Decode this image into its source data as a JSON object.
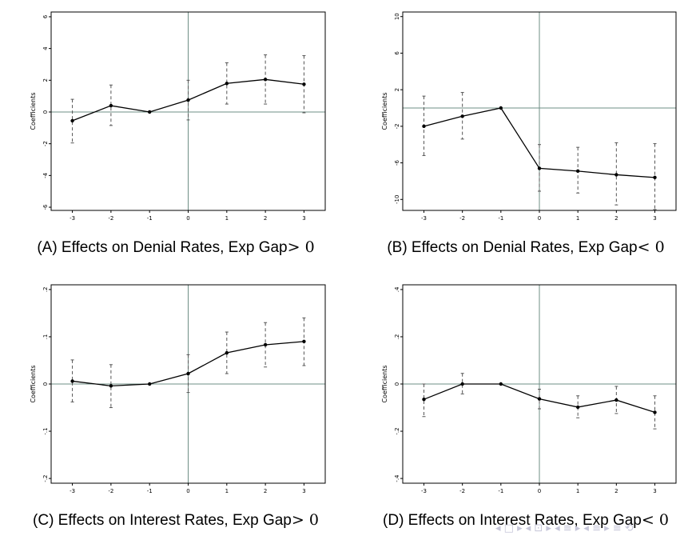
{
  "chart_data": [
    {
      "type": "line",
      "caption_text": "(A) Effects on Denial Rates, Exp Gap",
      "caption_math": "> 0",
      "ylabel": "Coefficients",
      "x": [
        -3,
        -2,
        -1,
        0,
        1,
        2,
        3
      ],
      "x_tick_labels": [
        "-3",
        "-2",
        "-1",
        "0",
        "1",
        "2",
        "3"
      ],
      "y_ticks": [
        6,
        4,
        2,
        0,
        -2,
        -4,
        -6
      ],
      "y_tick_labels": [
        "6",
        "4",
        "2",
        "0",
        "-2",
        "-4",
        "-6"
      ],
      "ylim": [
        -6.2,
        6.3
      ],
      "values": [
        -0.55,
        0.4,
        0.0,
        0.75,
        1.8,
        2.05,
        1.75
      ],
      "ci_low": [
        -1.95,
        -0.85,
        null,
        -0.5,
        0.5,
        0.5,
        -0.05
      ],
      "ci_high": [
        0.8,
        1.7,
        null,
        2.0,
        3.1,
        3.6,
        3.55
      ],
      "reference_lines": {
        "x": 0,
        "y": 0
      }
    },
    {
      "type": "line",
      "caption_text": "(B) Effects on Denial Rates, Exp Gap",
      "caption_math": "< 0",
      "ylabel": "Coefficients",
      "x": [
        -3,
        -2,
        -1,
        0,
        1,
        2,
        3
      ],
      "x_tick_labels": [
        "-3",
        "-2",
        "-1",
        "0",
        "1",
        "2",
        "3"
      ],
      "y_ticks": [
        10,
        6,
        2,
        -2,
        -6,
        -10
      ],
      "y_tick_labels": [
        "10",
        "6",
        "2",
        "-2",
        "-6",
        "-10"
      ],
      "ylim": [
        -11.2,
        10.5
      ],
      "values": [
        -2.0,
        -0.9,
        0.0,
        -6.6,
        -6.9,
        -7.3,
        -7.6
      ],
      "ci_low": [
        -5.2,
        -3.4,
        null,
        -9.1,
        -9.3,
        -10.6,
        -11.1
      ],
      "ci_high": [
        1.3,
        1.7,
        null,
        -4.0,
        -4.3,
        -3.8,
        -3.9
      ],
      "reference_lines": {
        "x": 0,
        "y": 0
      }
    },
    {
      "type": "line",
      "caption_text": "(C) Effects on Interest Rates, Exp Gap",
      "caption_math": "> 0",
      "ylabel": "Coefficients",
      "x": [
        -3,
        -2,
        -1,
        0,
        1,
        2,
        3
      ],
      "x_tick_labels": [
        "-3",
        "-2",
        "-1",
        "0",
        "1",
        "2",
        "3"
      ],
      "y_ticks": [
        0.2,
        0.1,
        0,
        -0.1,
        -0.2
      ],
      "y_tick_labels": [
        ".2",
        ".1",
        "0",
        "-.1",
        "-.2"
      ],
      "ylim": [
        -0.21,
        0.21
      ],
      "values": [
        0.006,
        -0.004,
        0.0,
        0.022,
        0.066,
        0.083,
        0.09
      ],
      "ci_low": [
        -0.038,
        -0.05,
        null,
        -0.018,
        0.022,
        0.036,
        0.039
      ],
      "ci_high": [
        0.051,
        0.041,
        null,
        0.062,
        0.11,
        0.13,
        0.14
      ],
      "reference_lines": {
        "x": 0,
        "y": 0
      }
    },
    {
      "type": "line",
      "caption_text": "(D) Effects on Interest Rates, Exp Gap",
      "caption_math": "< 0",
      "ylabel": "Coefficients",
      "x": [
        -3,
        -2,
        -1,
        0,
        1,
        2,
        3
      ],
      "x_tick_labels": [
        "-3",
        "-2",
        "-1",
        "0",
        "1",
        "2",
        "3"
      ],
      "y_ticks": [
        0.4,
        0.2,
        0,
        -0.2,
        -0.4
      ],
      "y_tick_labels": [
        ".4",
        ".2",
        "0",
        "-.2",
        "-.4"
      ],
      "ylim": [
        -0.42,
        0.42
      ],
      "values": [
        -0.065,
        0.0,
        0.0,
        -0.063,
        -0.098,
        -0.068,
        -0.12
      ],
      "ci_low": [
        -0.138,
        -0.042,
        null,
        -0.105,
        -0.143,
        -0.125,
        -0.19
      ],
      "ci_high": [
        0.0,
        0.045,
        null,
        -0.022,
        -0.05,
        -0.01,
        -0.05
      ],
      "reference_lines": {
        "x": 0,
        "y": 0
      }
    }
  ],
  "overlay": {
    "nav_glyphs": "◂ □ ▸ ◂ ⊡ ▸ ◂ ≡ ▸ ◂ ≡ ▸ ≡ ⟲"
  }
}
